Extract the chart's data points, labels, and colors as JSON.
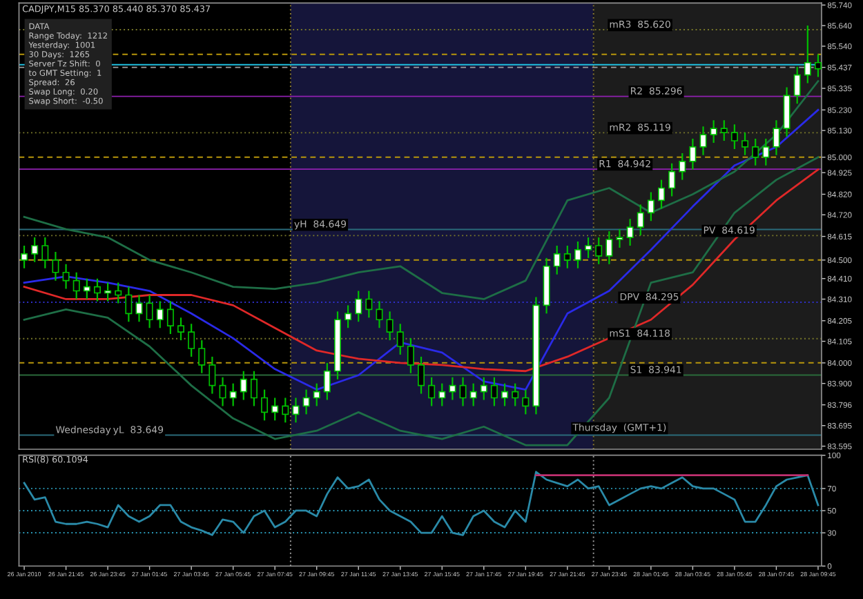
{
  "chart_data": [
    {
      "type": "candlestick",
      "title": "CADJPY,M15 85.370 85.440 85.370 85.437",
      "x": [
        "2010-01-26T19:45",
        "2010-01-26T20:15",
        "2010-01-26T20:45",
        "2010-01-26T21:15",
        "2010-01-26T21:45",
        "2010-01-26T22:15",
        "2010-01-26T22:45",
        "2010-01-26T23:15",
        "2010-01-26T23:45",
        "2010-01-27T00:15",
        "2010-01-27T00:45",
        "2010-01-27T01:15",
        "2010-01-27T01:45",
        "2010-01-27T02:15",
        "2010-01-27T02:45",
        "2010-01-27T03:15",
        "2010-01-27T03:45",
        "2010-01-27T04:15",
        "2010-01-27T04:45",
        "2010-01-27T05:15",
        "2010-01-27T05:45",
        "2010-01-27T06:15",
        "2010-01-27T06:45",
        "2010-01-27T07:15",
        "2010-01-27T07:45",
        "2010-01-27T08:15",
        "2010-01-27T08:45",
        "2010-01-27T09:15",
        "2010-01-27T09:45",
        "2010-01-27T10:15",
        "2010-01-27T10:45",
        "2010-01-27T11:15",
        "2010-01-27T11:45",
        "2010-01-27T12:15",
        "2010-01-27T12:45",
        "2010-01-27T13:15",
        "2010-01-27T13:45",
        "2010-01-27T14:15",
        "2010-01-27T14:45",
        "2010-01-27T15:15",
        "2010-01-27T15:45",
        "2010-01-27T16:15",
        "2010-01-27T16:45",
        "2010-01-27T17:15",
        "2010-01-27T17:45",
        "2010-01-27T18:15",
        "2010-01-27T18:45",
        "2010-01-27T19:15",
        "2010-01-27T19:45",
        "2010-01-27T20:15",
        "2010-01-27T20:45",
        "2010-01-27T21:15",
        "2010-01-27T21:45",
        "2010-01-27T22:15",
        "2010-01-27T22:45",
        "2010-01-27T23:15",
        "2010-01-27T23:45",
        "2010-01-28T00:15",
        "2010-01-28T00:45",
        "2010-01-28T01:15",
        "2010-01-28T01:45",
        "2010-01-28T02:15",
        "2010-01-28T02:45",
        "2010-01-28T03:15",
        "2010-01-28T03:45",
        "2010-01-28T04:15",
        "2010-01-28T04:45",
        "2010-01-28T05:15",
        "2010-01-28T05:45",
        "2010-01-28T06:15",
        "2010-01-28T06:45",
        "2010-01-28T07:15",
        "2010-01-28T07:45",
        "2010-01-28T08:15",
        "2010-01-28T08:45",
        "2010-01-28T09:15",
        "2010-01-28T09:45"
      ],
      "ohlc": [
        [
          84.5,
          84.57,
          84.46,
          84.53
        ],
        [
          84.53,
          84.61,
          84.49,
          84.57
        ],
        [
          84.57,
          84.61,
          84.46,
          84.5
        ],
        [
          84.5,
          84.54,
          84.4,
          84.44
        ],
        [
          84.44,
          84.48,
          84.36,
          84.4
        ],
        [
          84.4,
          84.44,
          84.31,
          84.35
        ],
        [
          84.35,
          84.41,
          84.31,
          84.37
        ],
        [
          84.37,
          84.41,
          84.3,
          84.34
        ],
        [
          84.34,
          84.39,
          84.3,
          84.35
        ],
        [
          84.35,
          84.39,
          84.29,
          84.33
        ],
        [
          84.33,
          84.37,
          84.2,
          84.24
        ],
        [
          84.24,
          84.33,
          84.2,
          84.29
        ],
        [
          84.29,
          84.33,
          84.17,
          84.21
        ],
        [
          84.21,
          84.3,
          84.17,
          84.26
        ],
        [
          84.26,
          84.3,
          84.14,
          84.18
        ],
        [
          84.18,
          84.22,
          84.11,
          84.15
        ],
        [
          84.15,
          84.19,
          84.03,
          84.07
        ],
        [
          84.07,
          84.11,
          83.95,
          83.99
        ],
        [
          83.99,
          84.03,
          83.85,
          83.89
        ],
        [
          83.89,
          83.93,
          83.79,
          83.83
        ],
        [
          83.83,
          83.9,
          83.79,
          83.86
        ],
        [
          83.86,
          83.96,
          83.82,
          83.92
        ],
        [
          83.92,
          83.96,
          83.79,
          83.83
        ],
        [
          83.83,
          83.87,
          83.72,
          83.76
        ],
        [
          83.76,
          83.83,
          83.72,
          83.79
        ],
        [
          83.79,
          83.83,
          83.71,
          83.75
        ],
        [
          83.75,
          83.83,
          83.71,
          83.79
        ],
        [
          83.79,
          83.87,
          83.75,
          83.83
        ],
        [
          83.83,
          83.9,
          83.79,
          83.86
        ],
        [
          83.86,
          84.0,
          83.82,
          83.96
        ],
        [
          83.96,
          84.25,
          83.92,
          84.21
        ],
        [
          84.21,
          84.28,
          84.17,
          84.24
        ],
        [
          84.24,
          84.35,
          84.2,
          84.31
        ],
        [
          84.31,
          84.35,
          84.22,
          84.26
        ],
        [
          84.26,
          84.3,
          84.17,
          84.21
        ],
        [
          84.21,
          84.25,
          84.11,
          84.15
        ],
        [
          84.15,
          84.19,
          84.04,
          84.08
        ],
        [
          84.08,
          84.12,
          83.95,
          83.99
        ],
        [
          83.99,
          84.03,
          83.85,
          83.89
        ],
        [
          83.89,
          83.93,
          83.79,
          83.83
        ],
        [
          83.83,
          83.9,
          83.79,
          83.86
        ],
        [
          83.86,
          83.93,
          83.82,
          83.89
        ],
        [
          83.89,
          83.93,
          83.79,
          83.83
        ],
        [
          83.83,
          83.9,
          83.79,
          83.86
        ],
        [
          83.86,
          83.93,
          83.82,
          83.89
        ],
        [
          83.89,
          83.93,
          83.79,
          83.83
        ],
        [
          83.83,
          83.9,
          83.79,
          83.86
        ],
        [
          83.86,
          83.9,
          83.79,
          83.83
        ],
        [
          83.83,
          83.87,
          83.75,
          83.79
        ],
        [
          83.79,
          84.32,
          83.75,
          84.28
        ],
        [
          84.28,
          84.51,
          84.24,
          84.47
        ],
        [
          84.47,
          84.57,
          84.43,
          84.53
        ],
        [
          84.53,
          84.57,
          84.46,
          84.5
        ],
        [
          84.5,
          84.59,
          84.46,
          84.55
        ],
        [
          84.55,
          84.61,
          84.51,
          84.57
        ],
        [
          84.57,
          84.61,
          84.48,
          84.52
        ],
        [
          84.52,
          84.64,
          84.48,
          84.6
        ],
        [
          84.6,
          84.65,
          84.56,
          84.61
        ],
        [
          84.61,
          84.7,
          84.57,
          84.66
        ],
        [
          84.66,
          84.77,
          84.62,
          84.73
        ],
        [
          84.73,
          84.83,
          84.69,
          84.79
        ],
        [
          84.79,
          84.89,
          84.75,
          84.85
        ],
        [
          84.85,
          84.97,
          84.81,
          84.93
        ],
        [
          84.93,
          85.02,
          84.89,
          84.98
        ],
        [
          84.98,
          85.09,
          84.94,
          85.05
        ],
        [
          85.05,
          85.15,
          85.01,
          85.11
        ],
        [
          85.11,
          85.18,
          85.07,
          85.14
        ],
        [
          85.14,
          85.18,
          85.08,
          85.12
        ],
        [
          85.12,
          85.16,
          85.04,
          85.08
        ],
        [
          85.08,
          85.12,
          85.01,
          85.05
        ],
        [
          85.05,
          85.09,
          84.96,
          85.0
        ],
        [
          85.0,
          85.09,
          84.96,
          85.05
        ],
        [
          85.05,
          85.18,
          85.01,
          85.14
        ],
        [
          85.14,
          85.34,
          85.1,
          85.3
        ],
        [
          85.3,
          85.44,
          85.26,
          85.4
        ],
        [
          85.4,
          85.64,
          85.36,
          85.46
        ],
        [
          85.46,
          85.5,
          85.39,
          85.43
        ]
      ],
      "series": [
        {
          "type": "line",
          "color": "#2a2ae8",
          "x": [
            "2010-01-26T19:45",
            "2010-01-26T21:45",
            "2010-01-26T23:45",
            "2010-01-27T01:45",
            "2010-01-27T03:45",
            "2010-01-27T05:45",
            "2010-01-27T07:45",
            "2010-01-27T09:45",
            "2010-01-27T11:45",
            "2010-01-27T13:45",
            "2010-01-27T15:45",
            "2010-01-27T17:45",
            "2010-01-27T19:45",
            "2010-01-27T21:45",
            "2010-01-27T23:45",
            "2010-01-28T01:45",
            "2010-01-28T03:45",
            "2010-01-28T05:45",
            "2010-01-28T07:45",
            "2010-01-28T09:45"
          ],
          "values": [
            84.39,
            84.42,
            84.39,
            84.35,
            84.24,
            84.12,
            83.97,
            83.87,
            83.94,
            84.1,
            84.05,
            83.91,
            83.87,
            84.24,
            84.35,
            84.55,
            84.76,
            84.96,
            85.05,
            85.23
          ]
        },
        {
          "type": "line",
          "color": "#e02828",
          "x": [
            "2010-01-26T19:45",
            "2010-01-26T21:45",
            "2010-01-26T23:45",
            "2010-01-27T01:45",
            "2010-01-27T03:45",
            "2010-01-27T05:45",
            "2010-01-27T07:45",
            "2010-01-27T09:45",
            "2010-01-27T11:45",
            "2010-01-27T13:45",
            "2010-01-27T15:45",
            "2010-01-27T17:45",
            "2010-01-27T19:45",
            "2010-01-27T21:45",
            "2010-01-27T23:45",
            "2010-01-28T01:45",
            "2010-01-28T03:45",
            "2010-01-28T05:45",
            "2010-01-28T07:45",
            "2010-01-28T09:45"
          ],
          "values": [
            84.37,
            84.31,
            84.31,
            84.33,
            84.33,
            84.28,
            84.17,
            84.06,
            84.02,
            84.0,
            83.99,
            83.97,
            83.96,
            84.03,
            84.12,
            84.21,
            84.38,
            84.6,
            84.79,
            84.94
          ]
        },
        {
          "type": "line",
          "color": "#1e6e46",
          "x": [
            "2010-01-26T19:45",
            "2010-01-26T21:45",
            "2010-01-26T23:45",
            "2010-01-27T01:45",
            "2010-01-27T03:45",
            "2010-01-27T05:45",
            "2010-01-27T07:45",
            "2010-01-27T09:45",
            "2010-01-27T11:45",
            "2010-01-27T13:45",
            "2010-01-27T15:45",
            "2010-01-27T17:45",
            "2010-01-27T19:45",
            "2010-01-27T21:45",
            "2010-01-27T23:45",
            "2010-01-28T01:45",
            "2010-01-28T03:45",
            "2010-01-28T05:45",
            "2010-01-28T07:45",
            "2010-01-28T09:45"
          ],
          "values": [
            84.71,
            84.65,
            84.61,
            84.5,
            84.44,
            84.37,
            84.36,
            84.39,
            84.44,
            84.47,
            84.34,
            84.31,
            84.4,
            84.79,
            84.85,
            84.73,
            84.82,
            84.93,
            85.11,
            85.37
          ]
        },
        {
          "type": "line",
          "color": "#1e6e46",
          "x": [
            "2010-01-26T19:45",
            "2010-01-26T21:45",
            "2010-01-26T23:45",
            "2010-01-27T01:45",
            "2010-01-27T03:45",
            "2010-01-27T05:45",
            "2010-01-27T07:45",
            "2010-01-27T09:45",
            "2010-01-27T11:45",
            "2010-01-27T13:45",
            "2010-01-27T15:45",
            "2010-01-27T17:45",
            "2010-01-27T19:45",
            "2010-01-27T21:45",
            "2010-01-27T23:45",
            "2010-01-28T01:45",
            "2010-01-28T03:45",
            "2010-01-28T05:45",
            "2010-01-28T07:45",
            "2010-01-28T09:45"
          ],
          "values": [
            84.21,
            84.26,
            84.22,
            84.08,
            83.89,
            83.73,
            83.63,
            83.67,
            83.76,
            83.67,
            83.63,
            83.69,
            83.6,
            83.6,
            83.83,
            84.39,
            84.44,
            84.73,
            84.89,
            85.0
          ]
        }
      ],
      "xlim": [
        "2010-01-26T19:30",
        "2010-01-28T09:55"
      ],
      "ylim": [
        83.58,
        85.75
      ],
      "yticks": [
        {
          "value": 85.74,
          "label": "85.740"
        },
        {
          "value": 85.64,
          "label": "85.640"
        },
        {
          "value": 85.54,
          "label": "85.540"
        },
        {
          "value": 85.437,
          "label": "85.437"
        },
        {
          "value": 85.335,
          "label": "85.335"
        },
        {
          "value": 85.23,
          "label": "85.230"
        },
        {
          "value": 85.13,
          "label": "85.130"
        },
        {
          "value": 85.0,
          "label": "85.000"
        },
        {
          "value": 84.925,
          "label": "84.925"
        },
        {
          "value": 84.82,
          "label": "84.820"
        },
        {
          "value": 84.72,
          "label": "84.720"
        },
        {
          "value": 84.615,
          "label": "84.615"
        },
        {
          "value": 84.5,
          "label": "84.500"
        },
        {
          "value": 84.41,
          "label": "84.410"
        },
        {
          "value": 84.31,
          "label": "84.310"
        },
        {
          "value": 84.205,
          "label": "84.205"
        },
        {
          "value": 84.105,
          "label": "84.105"
        },
        {
          "value": 84.0,
          "label": "84.000"
        },
        {
          "value": 83.9,
          "label": "83.900"
        },
        {
          "value": 83.796,
          "label": "83.796"
        },
        {
          "value": 83.695,
          "label": "83.695"
        },
        {
          "value": 83.595,
          "label": "83.595"
        }
      ],
      "tick_labels": "y",
      "bands": [
        {
          "axis": "x",
          "from": "2010-01-27T08:30",
          "to": "2010-01-27T23:00",
          "color": "#15153a"
        },
        {
          "axis": "x",
          "from": "2010-01-27T23:00",
          "to": "2010-01-28T09:55",
          "color": "#1c1c1c"
        }
      ],
      "ref_lines": [
        {
          "axis": "x",
          "value": "2010-01-27T08:30",
          "color": "#8a7a30",
          "line_style": "dotted"
        },
        {
          "axis": "x",
          "value": "2010-01-27T23:00",
          "color": "#8a7a30",
          "line_style": "dotted"
        },
        {
          "axis": "y",
          "value": 85.5,
          "color": "#b8960b",
          "line_style": "dashed"
        },
        {
          "axis": "y",
          "value": 85.0,
          "color": "#b8960b",
          "line_style": "dashed"
        },
        {
          "axis": "y",
          "value": 84.5,
          "color": "#b8960b",
          "line_style": "dashed"
        },
        {
          "axis": "y",
          "value": 84.0,
          "color": "#b8960b",
          "line_style": "dashed"
        },
        {
          "axis": "y",
          "value": 85.45,
          "color": "#20c0e0",
          "line_style": "solid"
        },
        {
          "axis": "y",
          "value": 85.437,
          "color": "#a0a0a0",
          "line_style": "dashed"
        },
        {
          "axis": "y",
          "value": 85.62,
          "color": "#7a7a2a",
          "line_style": "dotted"
        },
        {
          "axis": "y",
          "value": 85.296,
          "color": "#9020b0",
          "line_style": "solid"
        },
        {
          "axis": "y",
          "value": 85.119,
          "color": "#7a7a2a",
          "line_style": "dotted"
        },
        {
          "axis": "y",
          "value": 84.942,
          "color": "#9020b0",
          "line_style": "solid"
        },
        {
          "axis": "y",
          "value": 84.649,
          "color": "#2a6b7a",
          "line_style": "solid"
        },
        {
          "axis": "y",
          "value": 84.619,
          "color": "#7a7a2a",
          "line_style": "dotted"
        },
        {
          "axis": "y",
          "value": 84.295,
          "color": "#3030d0",
          "line_style": "dotted"
        },
        {
          "axis": "y",
          "value": 84.118,
          "color": "#7a7a2a",
          "line_style": "dotted"
        },
        {
          "axis": "y",
          "value": 83.941,
          "color": "#2a6b3a",
          "line_style": "solid"
        },
        {
          "axis": "y",
          "value": 83.649,
          "color": "#2a6b7a",
          "line_style": "solid"
        }
      ],
      "annotations": [
        "DATA\nRange Today:  1212\nYesterday:  1001\n30 Days:  1265\nServer Tz Shift:  0\nto GMT Setting:  1\nSpread:  26\nSwap Long:  0.20\nSwap Short:  -0.50",
        {
          "text": "mR3  85.620",
          "x": "2010-01-27T23:45",
          "y": 85.62
        },
        {
          "text": "R2  85.296",
          "x": "2010-01-28T00:45",
          "y": 85.296
        },
        {
          "text": "mR2  85.119",
          "x": "2010-01-27T23:45",
          "y": 85.119
        },
        {
          "text": "R1  84.942",
          "x": "2010-01-27T23:15",
          "y": 84.942
        },
        {
          "text": "yH  84.649",
          "x": "2010-01-27T08:40",
          "y": 84.649
        },
        {
          "text": "PV  84.619",
          "x": "2010-01-28T04:15",
          "y": 84.619
        },
        {
          "text": "DPV  84.295",
          "x": "2010-01-28T00:15",
          "y": 84.295
        },
        {
          "text": "mS1  84.118",
          "x": "2010-01-27T23:45",
          "y": 84.118
        },
        {
          "text": "S1  83.941",
          "x": "2010-01-28T00:45",
          "y": 83.941
        },
        {
          "text": "yL  83.649",
          "x": "2010-01-27T00:00",
          "y": 83.649
        },
        {
          "text": "Wednesday",
          "x": "2010-01-26T21:15",
          "y": 83.649
        },
        {
          "text": "Thursday  (GMT+1)",
          "x": "2010-01-27T22:00",
          "y": 83.66
        }
      ]
    },
    {
      "type": "line",
      "title": "RSI(8) 60.1094",
      "x": [
        "2010-01-26T19:45",
        "2010-01-26T20:15",
        "2010-01-26T20:45",
        "2010-01-26T21:15",
        "2010-01-26T21:45",
        "2010-01-26T22:15",
        "2010-01-26T22:45",
        "2010-01-26T23:15",
        "2010-01-26T23:45",
        "2010-01-27T00:15",
        "2010-01-27T00:45",
        "2010-01-27T01:15",
        "2010-01-27T01:45",
        "2010-01-27T02:15",
        "2010-01-27T02:45",
        "2010-01-27T03:15",
        "2010-01-27T03:45",
        "2010-01-27T04:15",
        "2010-01-27T04:45",
        "2010-01-27T05:15",
        "2010-01-27T05:45",
        "2010-01-27T06:15",
        "2010-01-27T06:45",
        "2010-01-27T07:15",
        "2010-01-27T07:45",
        "2010-01-27T08:15",
        "2010-01-27T08:45",
        "2010-01-27T09:15",
        "2010-01-27T09:45",
        "2010-01-27T10:15",
        "2010-01-27T10:45",
        "2010-01-27T11:15",
        "2010-01-27T11:45",
        "2010-01-27T12:15",
        "2010-01-27T12:45",
        "2010-01-27T13:15",
        "2010-01-27T13:45",
        "2010-01-27T14:15",
        "2010-01-27T14:45",
        "2010-01-27T15:15",
        "2010-01-27T15:45",
        "2010-01-27T16:15",
        "2010-01-27T16:45",
        "2010-01-27T17:15",
        "2010-01-27T17:45",
        "2010-01-27T18:15",
        "2010-01-27T18:45",
        "2010-01-27T19:15",
        "2010-01-27T19:45",
        "2010-01-27T20:15",
        "2010-01-27T20:45",
        "2010-01-27T21:15",
        "2010-01-27T21:45",
        "2010-01-27T22:15",
        "2010-01-27T22:45",
        "2010-01-27T23:15",
        "2010-01-27T23:45",
        "2010-01-28T00:15",
        "2010-01-28T00:45",
        "2010-01-28T01:15",
        "2010-01-28T01:45",
        "2010-01-28T02:15",
        "2010-01-28T02:45",
        "2010-01-28T03:15",
        "2010-01-28T03:45",
        "2010-01-28T04:15",
        "2010-01-28T04:45",
        "2010-01-28T05:15",
        "2010-01-28T05:45",
        "2010-01-28T06:15",
        "2010-01-28T06:45",
        "2010-01-28T07:15",
        "2010-01-28T07:45",
        "2010-01-28T08:15",
        "2010-01-28T08:45",
        "2010-01-28T09:15",
        "2010-01-28T09:45"
      ],
      "series": [
        {
          "color": "#2a8aa8",
          "values": [
            75,
            60,
            62,
            40,
            38,
            38,
            40,
            38,
            35,
            55,
            45,
            40,
            45,
            55,
            55,
            40,
            35,
            32,
            28,
            42,
            40,
            30,
            45,
            50,
            35,
            40,
            50,
            50,
            45,
            65,
            80,
            70,
            72,
            78,
            60,
            50,
            45,
            40,
            30,
            30,
            45,
            30,
            28,
            45,
            50,
            40,
            35,
            50,
            40,
            85,
            78,
            75,
            72,
            78,
            70,
            72,
            55,
            60,
            65,
            70,
            72,
            70,
            75,
            80,
            72,
            70,
            70,
            65,
            60,
            40,
            40,
            55,
            72,
            78,
            80,
            82,
            55
          ]
        },
        {
          "color": "#c03070",
          "x": [
            "2010-01-27T20:15",
            "2010-01-28T09:15"
          ],
          "values": [
            82,
            82
          ]
        }
      ],
      "xlim": [
        "2010-01-26T19:30",
        "2010-01-28T09:55"
      ],
      "ylim": [
        0,
        100
      ],
      "yticks": [
        0,
        30,
        50,
        70,
        100
      ],
      "xticks": [
        {
          "value": "2010-01-26T19:45",
          "label": "26 Jan 2010"
        },
        {
          "value": "2010-01-26T21:45",
          "label": "26 Jan 21:45"
        },
        {
          "value": "2010-01-26T23:45",
          "label": "26 Jan 23:45"
        },
        {
          "value": "2010-01-27T01:45",
          "label": "27 Jan 01:45"
        },
        {
          "value": "2010-01-27T03:45",
          "label": "27 Jan 03:45"
        },
        {
          "value": "2010-01-27T05:45",
          "label": "27 Jan 05:45"
        },
        {
          "value": "2010-01-27T07:45",
          "label": "27 Jan 07:45"
        },
        {
          "value": "2010-01-27T09:45",
          "label": "27 Jan 09:45"
        },
        {
          "value": "2010-01-27T11:45",
          "label": "27 Jan 11:45"
        },
        {
          "value": "2010-01-27T13:45",
          "label": "27 Jan 13:45"
        },
        {
          "value": "2010-01-27T15:45",
          "label": "27 Jan 15:45"
        },
        {
          "value": "2010-01-27T17:45",
          "label": "27 Jan 17:45"
        },
        {
          "value": "2010-01-27T19:45",
          "label": "27 Jan 19:45"
        },
        {
          "value": "2010-01-27T21:45",
          "label": "27 Jan 21:45"
        },
        {
          "value": "2010-01-27T23:45",
          "label": "27 Jan 23:45"
        },
        {
          "value": "2010-01-28T01:45",
          "label": "28 Jan 01:45"
        },
        {
          "value": "2010-01-28T03:45",
          "label": "28 Jan 03:45"
        },
        {
          "value": "2010-01-28T05:45",
          "label": "28 Jan 05:45"
        },
        {
          "value": "2010-01-28T07:45",
          "label": "28 Jan 07:45"
        },
        {
          "value": "2010-01-28T09:45",
          "label": "28 Jan 09:45"
        }
      ],
      "ref_lines": [
        {
          "axis": "y",
          "value": 30,
          "color": "#2a9ab8",
          "line_style": "dotted"
        },
        {
          "axis": "y",
          "value": 50,
          "color": "#2a9ab8",
          "line_style": "dotted"
        },
        {
          "axis": "y",
          "value": 70,
          "color": "#2a9ab8",
          "line_style": "dotted"
        },
        {
          "axis": "x",
          "value": "2010-01-27T08:30",
          "color": "#a0a0a0",
          "line_style": "dotted"
        },
        {
          "axis": "x",
          "value": "2010-01-27T23:00",
          "color": "#a0a0a0",
          "line_style": "dotted"
        }
      ]
    }
  ]
}
